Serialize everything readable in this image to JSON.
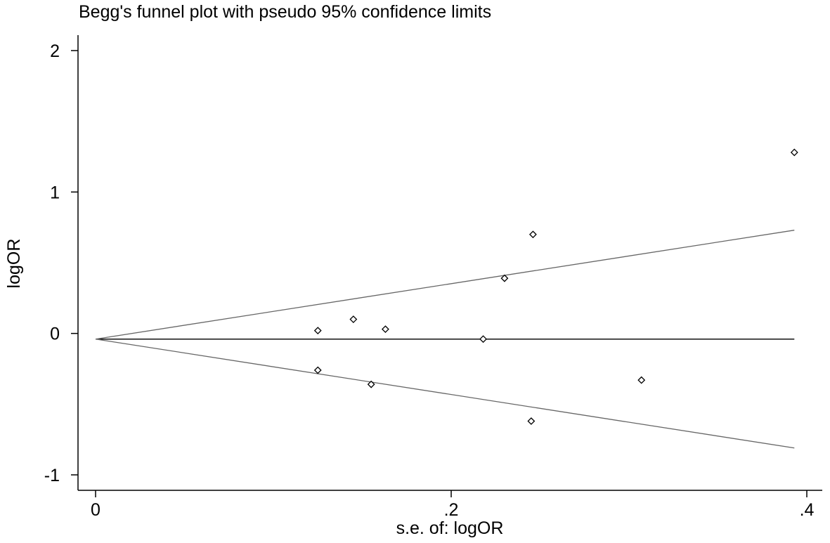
{
  "chart_data": {
    "type": "scatter",
    "title": "Begg's funnel plot with pseudo 95% confidence limits",
    "xlabel": "s.e. of: logOR",
    "ylabel": "logOR",
    "xlim": [
      0,
      0.4
    ],
    "ylim": [
      -1,
      2
    ],
    "xticks": [
      0,
      0.2,
      0.4
    ],
    "xtick_labels": [
      "0",
      ".2",
      ".4"
    ],
    "yticks": [
      -1,
      0,
      1,
      2
    ],
    "ytick_labels": [
      "-1",
      "0",
      "1",
      "2"
    ],
    "grid": false,
    "points": [
      {
        "x": 0.125,
        "y": 0.02
      },
      {
        "x": 0.125,
        "y": -0.26
      },
      {
        "x": 0.145,
        "y": 0.1
      },
      {
        "x": 0.155,
        "y": -0.36
      },
      {
        "x": 0.163,
        "y": 0.03
      },
      {
        "x": 0.218,
        "y": -0.04
      },
      {
        "x": 0.23,
        "y": 0.39
      },
      {
        "x": 0.246,
        "y": 0.7
      },
      {
        "x": 0.245,
        "y": -0.62
      },
      {
        "x": 0.307,
        "y": -0.33
      },
      {
        "x": 0.393,
        "y": 1.28
      }
    ],
    "pooled_estimate": -0.04,
    "confidence_limits": {
      "se_range": [
        0.0,
        0.393
      ],
      "upper_at_max_se": 0.73,
      "lower_at_max_se": -0.81
    }
  }
}
